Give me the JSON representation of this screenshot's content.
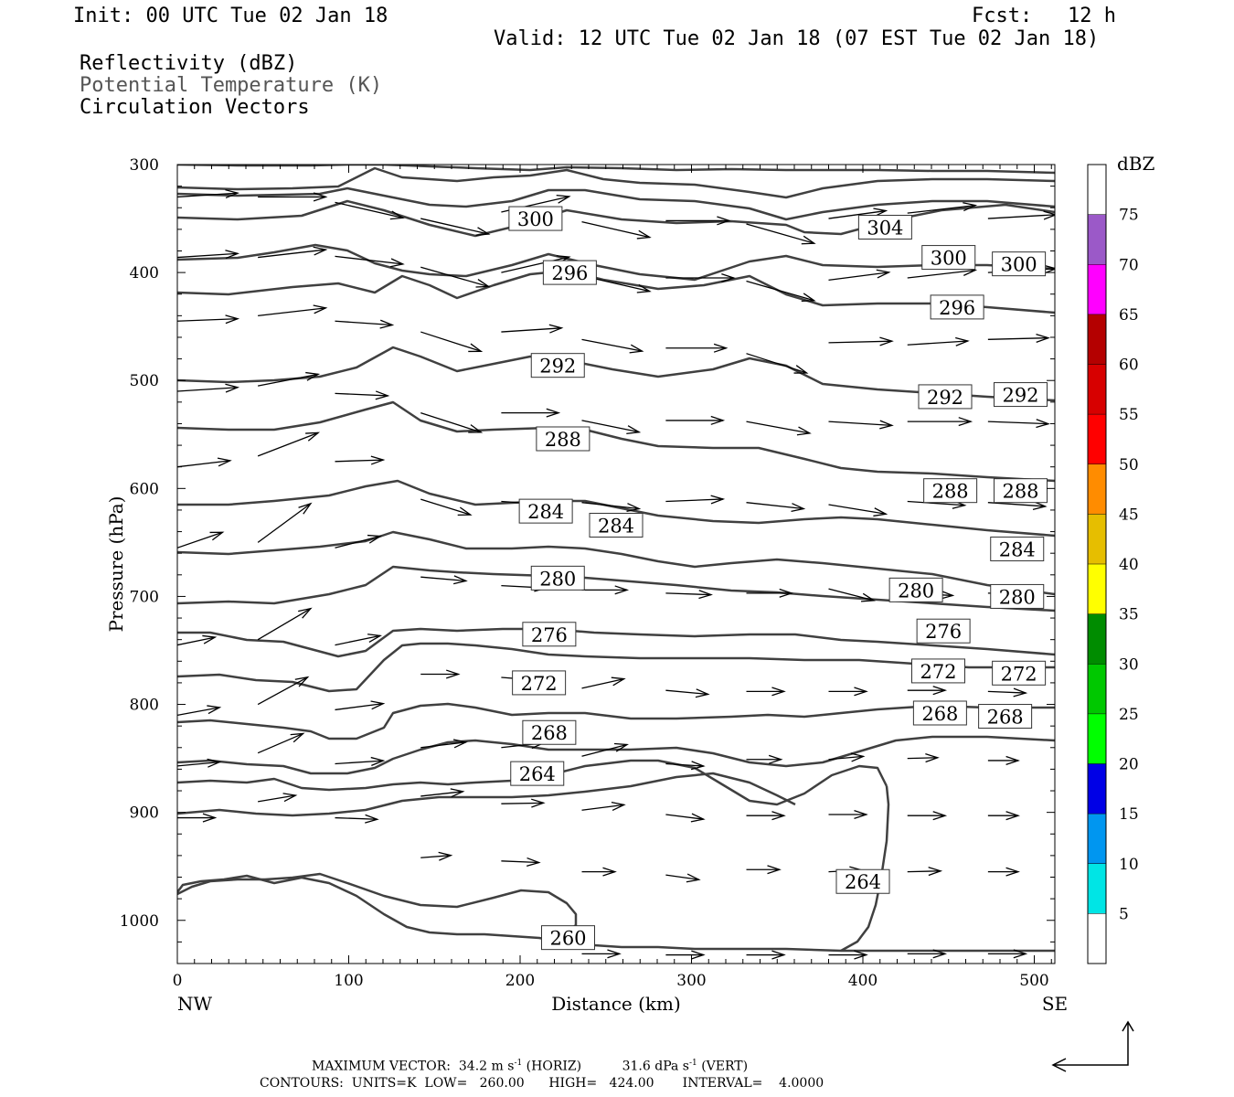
{
  "header": {
    "init": "Init: 00 UTC Tue 02 Jan 18",
    "fcst_label": "Fcst:",
    "fcst_value": "12 h",
    "valid": "Valid: 12 UTC Tue 02 Jan 18 (07 EST Tue 02 Jan 18)",
    "fields": [
      "Reflectivity (dBZ)",
      "Potential Temperature (K)",
      "Circulation Vectors"
    ]
  },
  "footer": {
    "max_vector_label": "MAXIMUM VECTOR:",
    "horiz_value": "34.2",
    "horiz_unit": "m s",
    "horiz_tag": "(HORIZ)",
    "vert_value": "31.6",
    "vert_unit": "dPa s",
    "vert_tag": "(VERT)",
    "exponent": "-1",
    "contours_line": "CONTOURS:  UNITS=K  LOW=   260.00      HIGH=   424.00       INTERVAL=    4.0000"
  },
  "chart_data": {
    "type": "contour",
    "xlabel": "Distance (km)",
    "ylabel": "Pressure (hPa)",
    "x_ticks": [
      0,
      100,
      200,
      300,
      400,
      500
    ],
    "y_ticks": [
      300,
      400,
      500,
      600,
      700,
      800,
      900,
      1000
    ],
    "xlim": [
      0,
      512
    ],
    "ylim": [
      300,
      1040
    ],
    "y_inverted": true,
    "endpoint_labels": {
      "left": "NW",
      "right": "SE"
    },
    "colorbar": {
      "title": "dBZ",
      "levels": [
        5,
        10,
        15,
        20,
        25,
        30,
        35,
        40,
        45,
        50,
        55,
        60,
        65,
        70,
        75
      ],
      "colors": [
        "#ffffff",
        "#00e5e5",
        "#0096f0",
        "#0000e6",
        "#00ff00",
        "#00c800",
        "#008c00",
        "#ffff00",
        "#e6be00",
        "#ff8c00",
        "#ff0000",
        "#d70000",
        "#b40000",
        "#ff00ff",
        "#9b59c8",
        "#ffffff"
      ]
    },
    "contour_color": "#404040",
    "contour_labels": [
      {
        "v": "300",
        "x": 209,
        "p": 350
      },
      {
        "v": "304",
        "x": 413,
        "p": 358
      },
      {
        "v": "296",
        "x": 229,
        "p": 400
      },
      {
        "v": "300",
        "x": 450,
        "p": 386
      },
      {
        "v": "300",
        "x": 491,
        "p": 392
      },
      {
        "v": "296",
        "x": 455,
        "p": 432
      },
      {
        "v": "292",
        "x": 222,
        "p": 486
      },
      {
        "v": "292",
        "x": 448,
        "p": 515
      },
      {
        "v": "292",
        "x": 492,
        "p": 513
      },
      {
        "v": "288",
        "x": 225,
        "p": 554
      },
      {
        "v": "288",
        "x": 451,
        "p": 602
      },
      {
        "v": "288",
        "x": 492,
        "p": 602
      },
      {
        "v": "284",
        "x": 215,
        "p": 621
      },
      {
        "v": "284",
        "x": 256,
        "p": 634
      },
      {
        "v": "284",
        "x": 490,
        "p": 656
      },
      {
        "v": "280",
        "x": 222,
        "p": 683
      },
      {
        "v": "280",
        "x": 431,
        "p": 694
      },
      {
        "v": "280",
        "x": 490,
        "p": 700
      },
      {
        "v": "276",
        "x": 217,
        "p": 735
      },
      {
        "v": "276",
        "x": 447,
        "p": 732
      },
      {
        "v": "272",
        "x": 211,
        "p": 780
      },
      {
        "v": "272",
        "x": 444,
        "p": 769
      },
      {
        "v": "272",
        "x": 491,
        "p": 771
      },
      {
        "v": "268",
        "x": 217,
        "p": 826
      },
      {
        "v": "268",
        "x": 445,
        "p": 808
      },
      {
        "v": "268",
        "x": 483,
        "p": 811
      },
      {
        "v": "264",
        "x": 210,
        "p": 864
      },
      {
        "v": "264",
        "x": 400,
        "p": 964
      },
      {
        "v": "260",
        "x": 228,
        "p": 1016
      }
    ],
    "vectors": [
      {
        "x": 0,
        "p": 330,
        "u": 40,
        "w": 5
      },
      {
        "x": 47,
        "p": 330,
        "u": 45,
        "w": 0
      },
      {
        "x": 0,
        "p": 386,
        "u": 40,
        "w": 5
      },
      {
        "x": 47,
        "p": 386,
        "u": 45,
        "w": 10
      },
      {
        "x": 92,
        "p": 335,
        "u": 45,
        "w": -20
      },
      {
        "x": 142,
        "p": 350,
        "u": 45,
        "w": -20
      },
      {
        "x": 189,
        "p": 344,
        "u": 45,
        "w": 20
      },
      {
        "x": 236,
        "p": 353,
        "u": 45,
        "w": -20
      },
      {
        "x": 285,
        "p": 352,
        "u": 42,
        "w": 0
      },
      {
        "x": 332,
        "p": 355,
        "u": 45,
        "w": -25
      },
      {
        "x": 380,
        "p": 350,
        "u": 38,
        "w": 10
      },
      {
        "x": 426,
        "p": 345,
        "u": 45,
        "w": 10
      },
      {
        "x": 473,
        "p": 350,
        "u": 45,
        "w": 5
      },
      {
        "x": 92,
        "p": 385,
        "u": 45,
        "w": -10
      },
      {
        "x": 142,
        "p": 395,
        "u": 45,
        "w": -25
      },
      {
        "x": 189,
        "p": 400,
        "u": 45,
        "w": 20
      },
      {
        "x": 236,
        "p": 403,
        "u": 45,
        "w": -20
      },
      {
        "x": 285,
        "p": 405,
        "u": 45,
        "w": 0
      },
      {
        "x": 332,
        "p": 408,
        "u": 45,
        "w": -25
      },
      {
        "x": 380,
        "p": 407,
        "u": 40,
        "w": 10
      },
      {
        "x": 426,
        "p": 405,
        "u": 45,
        "w": 10
      },
      {
        "x": 473,
        "p": 400,
        "u": 45,
        "w": 5
      },
      {
        "x": 0,
        "p": 445,
        "u": 40,
        "w": 3
      },
      {
        "x": 47,
        "p": 440,
        "u": 45,
        "w": 10
      },
      {
        "x": 92,
        "p": 445,
        "u": 38,
        "w": -5
      },
      {
        "x": 142,
        "p": 455,
        "u": 40,
        "w": -25
      },
      {
        "x": 189,
        "p": 455,
        "u": 40,
        "w": 5
      },
      {
        "x": 236,
        "p": 462,
        "u": 40,
        "w": -15
      },
      {
        "x": 285,
        "p": 470,
        "u": 40,
        "w": 0
      },
      {
        "x": 332,
        "p": 475,
        "u": 40,
        "w": -25
      },
      {
        "x": 380,
        "p": 465,
        "u": 42,
        "w": 2
      },
      {
        "x": 426,
        "p": 467,
        "u": 40,
        "w": 5
      },
      {
        "x": 473,
        "p": 462,
        "u": 40,
        "w": 2
      },
      {
        "x": 0,
        "p": 510,
        "u": 40,
        "w": 5
      },
      {
        "x": 47,
        "p": 505,
        "u": 40,
        "w": 15
      },
      {
        "x": 92,
        "p": 512,
        "u": 35,
        "w": -3
      },
      {
        "x": 142,
        "p": 530,
        "u": 40,
        "w": -25
      },
      {
        "x": 189,
        "p": 530,
        "u": 38,
        "w": 0
      },
      {
        "x": 236,
        "p": 537,
        "u": 38,
        "w": -15
      },
      {
        "x": 285,
        "p": 537,
        "u": 38,
        "w": 0
      },
      {
        "x": 332,
        "p": 538,
        "u": 42,
        "w": -15
      },
      {
        "x": 380,
        "p": 538,
        "u": 42,
        "w": -5
      },
      {
        "x": 426,
        "p": 538,
        "u": 42,
        "w": 0
      },
      {
        "x": 473,
        "p": 538,
        "u": 40,
        "w": -3
      },
      {
        "x": 0,
        "p": 580,
        "u": 35,
        "w": 8
      },
      {
        "x": 47,
        "p": 570,
        "u": 40,
        "w": 30
      },
      {
        "x": 92,
        "p": 575,
        "u": 32,
        "w": 2
      },
      {
        "x": 142,
        "p": 610,
        "u": 33,
        "w": -20
      },
      {
        "x": 189,
        "p": 612,
        "u": 38,
        "w": -5
      },
      {
        "x": 236,
        "p": 613,
        "u": 38,
        "w": -8
      },
      {
        "x": 285,
        "p": 612,
        "u": 38,
        "w": 3
      },
      {
        "x": 332,
        "p": 613,
        "u": 38,
        "w": -8
      },
      {
        "x": 380,
        "p": 615,
        "u": 38,
        "w": -12
      },
      {
        "x": 426,
        "p": 612,
        "u": 38,
        "w": -5
      },
      {
        "x": 473,
        "p": 613,
        "u": 38,
        "w": -5
      },
      {
        "x": 0,
        "p": 655,
        "u": 30,
        "w": 20
      },
      {
        "x": 47,
        "p": 650,
        "u": 35,
        "w": 50
      },
      {
        "x": 92,
        "p": 655,
        "u": 30,
        "w": 15
      },
      {
        "x": 142,
        "p": 682,
        "u": 30,
        "w": -5
      },
      {
        "x": 189,
        "p": 690,
        "u": 30,
        "w": -3
      },
      {
        "x": 236,
        "p": 694,
        "u": 30,
        "w": 0
      },
      {
        "x": 285,
        "p": 697,
        "u": 30,
        "w": -2
      },
      {
        "x": 332,
        "p": 697,
        "u": 30,
        "w": 0
      },
      {
        "x": 380,
        "p": 693,
        "u": 30,
        "w": -15
      },
      {
        "x": 426,
        "p": 697,
        "u": 30,
        "w": -3
      },
      {
        "x": 473,
        "p": 697,
        "u": 30,
        "w": 0
      },
      {
        "x": 0,
        "p": 745,
        "u": 25,
        "w": 10
      },
      {
        "x": 47,
        "p": 740,
        "u": 35,
        "w": 40
      },
      {
        "x": 92,
        "p": 745,
        "u": 30,
        "w": 12
      },
      {
        "x": 142,
        "p": 772,
        "u": 25,
        "w": 0
      },
      {
        "x": 189,
        "p": 775,
        "u": 20,
        "w": -3
      },
      {
        "x": 236,
        "p": 785,
        "u": 28,
        "w": 12
      },
      {
        "x": 285,
        "p": 787,
        "u": 28,
        "w": -5
      },
      {
        "x": 332,
        "p": 788,
        "u": 25,
        "w": 0
      },
      {
        "x": 380,
        "p": 788,
        "u": 25,
        "w": 0
      },
      {
        "x": 426,
        "p": 787,
        "u": 25,
        "w": 0
      },
      {
        "x": 473,
        "p": 788,
        "u": 25,
        "w": -2
      },
      {
        "x": 0,
        "p": 810,
        "u": 28,
        "w": 10
      },
      {
        "x": 47,
        "p": 800,
        "u": 33,
        "w": 35
      },
      {
        "x": 92,
        "p": 805,
        "u": 32,
        "w": 8
      },
      {
        "x": 142,
        "p": 840,
        "u": 30,
        "w": 7
      },
      {
        "x": 189,
        "p": 840,
        "u": 28,
        "w": 6
      },
      {
        "x": 236,
        "p": 848,
        "u": 30,
        "w": 15
      },
      {
        "x": 285,
        "p": 855,
        "u": 25,
        "w": -3
      },
      {
        "x": 332,
        "p": 851,
        "u": 23,
        "w": 0
      },
      {
        "x": 380,
        "p": 851,
        "u": 23,
        "w": 4
      },
      {
        "x": 426,
        "p": 850,
        "u": 20,
        "w": 1
      },
      {
        "x": 473,
        "p": 852,
        "u": 20,
        "w": 0
      },
      {
        "x": 0,
        "p": 857,
        "u": 28,
        "w": 5
      },
      {
        "x": 47,
        "p": 845,
        "u": 30,
        "w": 25
      },
      {
        "x": 92,
        "p": 855,
        "u": 32,
        "w": 4
      },
      {
        "x": 142,
        "p": 885,
        "u": 28,
        "w": 6
      },
      {
        "x": 189,
        "p": 892,
        "u": 28,
        "w": 1
      },
      {
        "x": 236,
        "p": 898,
        "u": 28,
        "w": 7
      },
      {
        "x": 285,
        "p": 902,
        "u": 25,
        "w": -6
      },
      {
        "x": 332,
        "p": 903,
        "u": 25,
        "w": 0
      },
      {
        "x": 380,
        "p": 902,
        "u": 25,
        "w": 0
      },
      {
        "x": 426,
        "p": 903,
        "u": 25,
        "w": 0
      },
      {
        "x": 473,
        "p": 903,
        "u": 20,
        "w": 0
      },
      {
        "x": 0,
        "p": 905,
        "u": 25,
        "w": 0
      },
      {
        "x": 47,
        "p": 890,
        "u": 25,
        "w": 8
      },
      {
        "x": 92,
        "p": 905,
        "u": 28,
        "w": -2
      },
      {
        "x": 142,
        "p": 942,
        "u": 20,
        "w": 3
      },
      {
        "x": 189,
        "p": 945,
        "u": 25,
        "w": -2
      },
      {
        "x": 236,
        "p": 955,
        "u": 22,
        "w": 0
      },
      {
        "x": 285,
        "p": 958,
        "u": 22,
        "w": -6
      },
      {
        "x": 332,
        "p": 953,
        "u": 22,
        "w": 0
      },
      {
        "x": 380,
        "p": 955,
        "u": 22,
        "w": 2
      },
      {
        "x": 426,
        "p": 955,
        "u": 22,
        "w": 1
      },
      {
        "x": 473,
        "p": 955,
        "u": 20,
        "w": 0
      },
      {
        "x": 236,
        "p": 1031,
        "u": 25,
        "w": 0
      },
      {
        "x": 285,
        "p": 1032,
        "u": 25,
        "w": 0
      },
      {
        "x": 332,
        "p": 1032,
        "u": 25,
        "w": 0
      },
      {
        "x": 380,
        "p": 1032,
        "u": 25,
        "w": 0
      },
      {
        "x": 426,
        "p": 1031,
        "u": 25,
        "w": 0
      },
      {
        "x": 473,
        "p": 1031,
        "u": 25,
        "w": 0
      }
    ]
  }
}
